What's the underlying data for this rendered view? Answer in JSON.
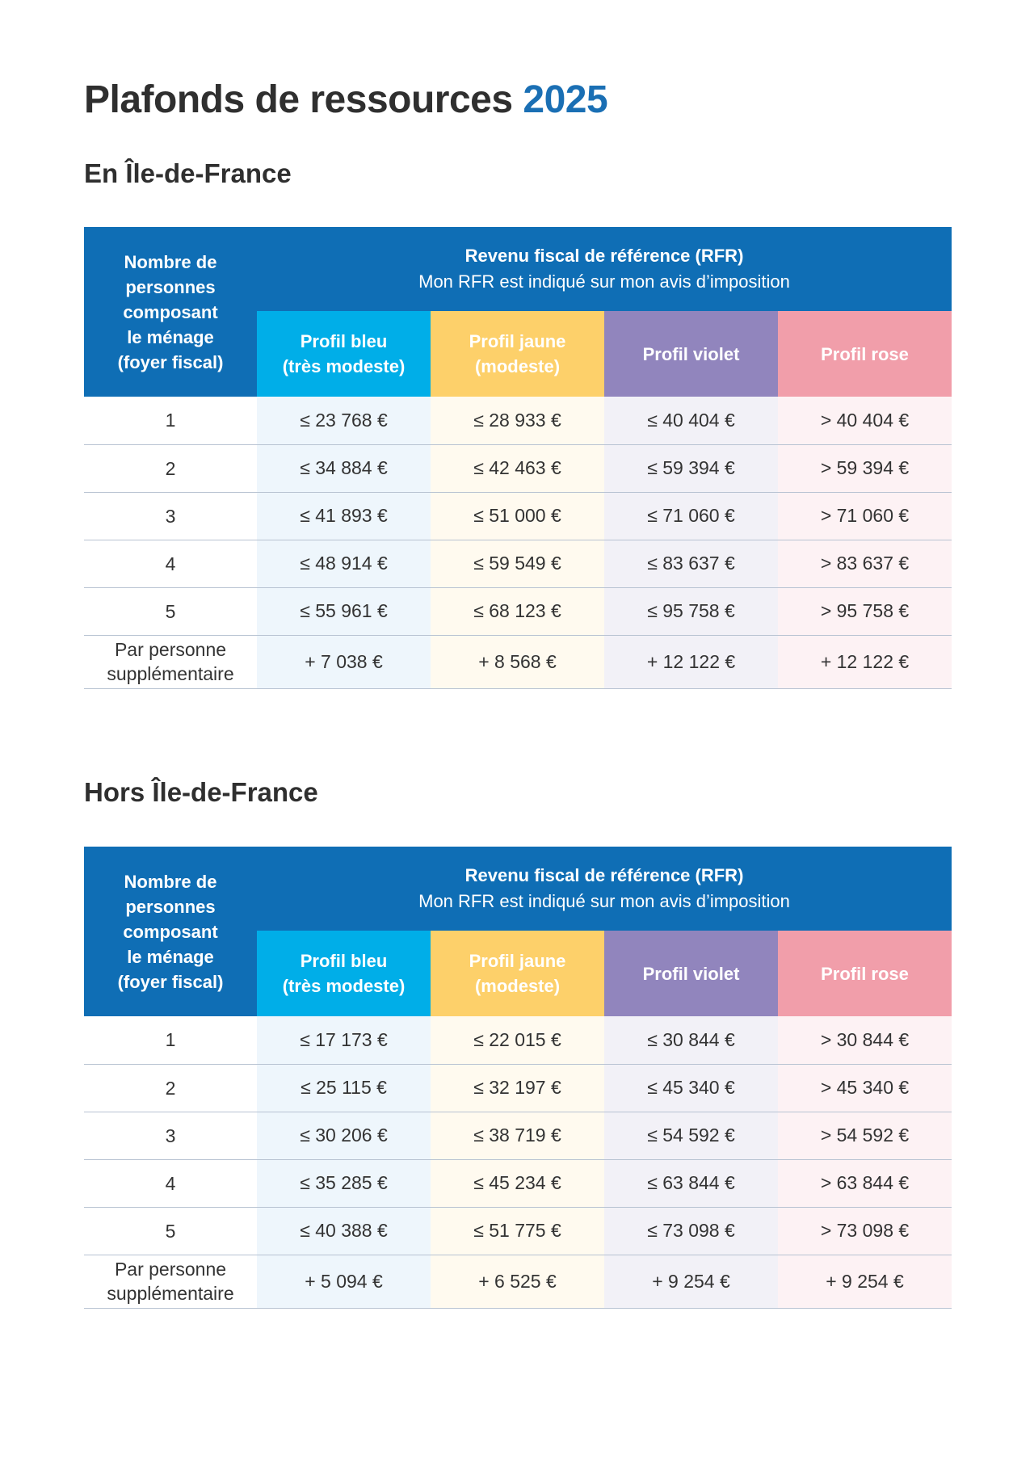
{
  "title": {
    "text": "Plafonds de ressources",
    "year": "2025"
  },
  "header": {
    "col0": [
      "Nombre de",
      "personnes",
      "composant",
      "le ménage"
    ],
    "col0_sub": "(foyer fiscal)",
    "rfr_title": "Revenu fiscal de référence (RFR)",
    "rfr_sub": "Mon RFR est indiqué sur mon avis d’imposition",
    "profiles": [
      {
        "l1": "Profil bleu",
        "l2": "(très modeste)"
      },
      {
        "l1": "Profil jaune",
        "l2": "(modeste)"
      },
      {
        "l1": "Profil violet"
      },
      {
        "l1": "Profil rose"
      }
    ]
  },
  "colors": {
    "blue": "#0f6eb5",
    "bleu": "#00aee8",
    "jaune": "#fdd06a",
    "violet": "#9185bd",
    "rose": "#f19eaa"
  },
  "tables": [
    {
      "heading": "En Île-de-France",
      "rows": [
        [
          "1",
          "≤ 23 768 €",
          "≤ 28 933 €",
          "≤ 40 404 €",
          "> 40 404 €"
        ],
        [
          "2",
          "≤ 34 884 €",
          "≤ 42 463 €",
          "≤ 59 394 €",
          "> 59 394 €"
        ],
        [
          "3",
          "≤ 41 893 €",
          "≤ 51 000 €",
          "≤ 71 060 €",
          "> 71 060 €"
        ],
        [
          "4",
          "≤ 48 914 €",
          "≤ 59 549 €",
          "≤ 83 637 €",
          "> 83 637 €"
        ],
        [
          "5",
          "≤ 55 961 €",
          "≤ 68 123 €",
          "≤ 95 758 €",
          "> 95 758 €"
        ]
      ],
      "extra": {
        "l1": "Par personne",
        "l2": "supplémentaire",
        "vals": [
          "+ 7 038 €",
          "+ 8 568 €",
          "+ 12 122 €",
          "+ 12 122 €"
        ]
      }
    },
    {
      "heading": "Hors Île-de-France",
      "rows": [
        [
          "1",
          "≤ 17 173 €",
          "≤ 22 015 €",
          "≤ 30 844 €",
          "> 30 844 €"
        ],
        [
          "2",
          "≤ 25 115 €",
          "≤ 32 197 €",
          "≤ 45 340 €",
          "> 45 340 €"
        ],
        [
          "3",
          "≤ 30 206 €",
          "≤ 38 719 €",
          "≤ 54 592 €",
          "> 54 592 €"
        ],
        [
          "4",
          "≤ 35 285 €",
          "≤ 45 234 €",
          "≤ 63 844 €",
          "> 63 844 €"
        ],
        [
          "5",
          "≤ 40 388 €",
          "≤ 51 775 €",
          "≤ 73 098 €",
          "> 73 098 €"
        ]
      ],
      "extra": {
        "l1": "Par personne",
        "l2": "supplémentaire",
        "vals": [
          "+ 5 094 €",
          "+ 6 525 €",
          "+ 9 254 €",
          "+ 9 254 €"
        ]
      }
    }
  ]
}
